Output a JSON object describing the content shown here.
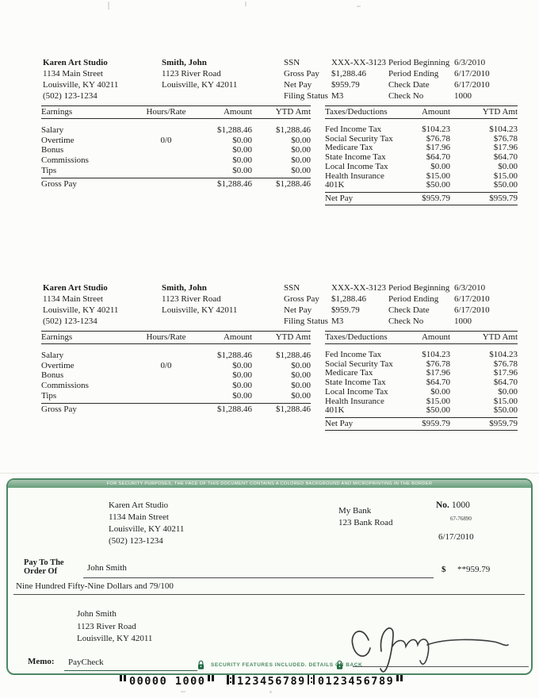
{
  "colors": {
    "check_green": "#4c8765",
    "security_text": "#4a8a63",
    "banner_green": "#679e7b"
  },
  "stub": {
    "employer": {
      "name": "Karen Art Studio",
      "address1": "1134 Main Street",
      "address2": "Louisville, KY 40211",
      "phone": "(502) 123-1234"
    },
    "employee": {
      "name": "Smith, John",
      "address1": "1123 River Road",
      "address2": "Louisville, KY 42011"
    },
    "info": {
      "ssn_label": "SSN",
      "ssn": "XXX-XX-3123",
      "gross_label": "Gross Pay",
      "gross": "$1,288.46",
      "net_label": "Net Pay",
      "net": "$959.79",
      "filing_label": "Filing Status",
      "filing": "M3",
      "period_begin_label": "Period Beginning",
      "period_begin": "6/3/2010",
      "period_end_label": "Period Ending",
      "period_end": "6/17/2010",
      "check_date_label": "Check Date",
      "check_date": "6/17/2010",
      "check_no_label": "Check No",
      "check_no": "1000"
    },
    "earnings": {
      "headers": [
        "Earnings",
        "Hours/Rate",
        "Amount",
        "YTD Amt"
      ],
      "rows": [
        {
          "label": "Salary",
          "hours": "",
          "amount": "$1,288.46",
          "ytd": "$1,288.46"
        },
        {
          "label": "Overtime",
          "hours": "0/0",
          "amount": "$0.00",
          "ytd": "$0.00"
        },
        {
          "label": "Bonus",
          "hours": "",
          "amount": "$0.00",
          "ytd": "$0.00"
        },
        {
          "label": "Commissions",
          "hours": "",
          "amount": "$0.00",
          "ytd": "$0.00"
        },
        {
          "label": "Tips",
          "hours": "",
          "amount": "$0.00",
          "ytd": "$0.00"
        }
      ],
      "total": {
        "label": "Gross Pay",
        "amount": "$1,288.46",
        "ytd": "$1,288.46"
      }
    },
    "deductions": {
      "headers": [
        "Taxes/Deductions",
        "Amount",
        "YTD Amt"
      ],
      "rows": [
        {
          "label": "Fed Income Tax",
          "amount": "$104.23",
          "ytd": "$104.23"
        },
        {
          "label": "Social Security Tax",
          "amount": "$76.78",
          "ytd": "$76.78"
        },
        {
          "label": "Medicare Tax",
          "amount": "$17.96",
          "ytd": "$17.96"
        },
        {
          "label": "State Income Tax",
          "amount": "$64.70",
          "ytd": "$64.70"
        },
        {
          "label": "Local Income Tax",
          "amount": "$0.00",
          "ytd": "$0.00"
        },
        {
          "label": "Health Insurance",
          "amount": "$15.00",
          "ytd": "$15.00"
        },
        {
          "label": "401K",
          "amount": "$50.00",
          "ytd": "$50.00"
        }
      ],
      "total": {
        "label": "Net Pay",
        "amount": "$959.79",
        "ytd": "$959.79"
      }
    }
  },
  "check": {
    "security_banner": "FOR SECURITY PURPOSES, THE FACE OF THIS DOCUMENT CONTAINS A COLORED BACKGROUND AND MICROPRINTING IN THE BORDER",
    "payer": {
      "name": "Karen Art Studio",
      "address1": "1134 Main Street",
      "address2": "Louisville, KY 40211",
      "phone": "(502) 123-1234"
    },
    "bank": {
      "name": "My Bank",
      "address": "123 Bank Road"
    },
    "number_label": "No.",
    "number": "1000",
    "fraction": "67-76890",
    "date": "6/17/2010",
    "pay_to_line1": "Pay To The",
    "pay_to_line2": "Order Of",
    "payee_name": "John Smith",
    "dollar_sign": "$",
    "amount_numeric": "**959.79",
    "amount_words": "Nine Hundred Fifty-Nine Dollars and 79/100",
    "payee_address": {
      "name": "John Smith",
      "address1": "1123 River Road",
      "address2": "Louisville, KY 42011"
    },
    "memo_label": "Memo:",
    "memo": "PayCheck",
    "security_note": "SECURITY FEATURES INCLUDED. DETAILS ON BACK",
    "micr": "⑈00000 1000⑈ ⑆123456789⑆0123456789⑈"
  }
}
